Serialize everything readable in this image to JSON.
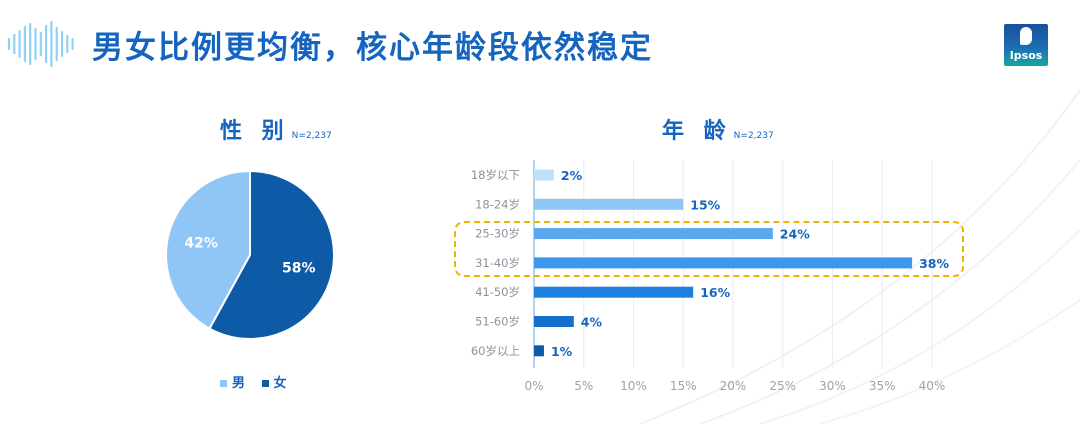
{
  "header": {
    "title": "男女比例更均衡，核心年龄段依然稳定",
    "logo_text": "Ipsos",
    "accent_color": "#1565c0"
  },
  "gender": {
    "title": "性 别",
    "n_label": "N=2,237",
    "legend": [
      {
        "label": "男",
        "color": "#90c6f5"
      },
      {
        "label": "女",
        "color": "#0d5aa7"
      }
    ]
  },
  "age": {
    "title": "年 龄",
    "n_label": "N=2,237"
  },
  "chart_data": [
    {
      "type": "pie",
      "labels": [
        "男",
        "女"
      ],
      "values": [
        42,
        58
      ],
      "value_labels": [
        "42%",
        "58%"
      ],
      "colors": [
        "#90c6f5",
        "#0d5aa7"
      ]
    },
    {
      "type": "bar",
      "orientation": "horizontal",
      "categories": [
        "18岁以下",
        "18-24岁",
        "25-30岁",
        "31-40岁",
        "41-50岁",
        "51-60岁",
        "60岁以上"
      ],
      "values": [
        2,
        15,
        24,
        38,
        16,
        4,
        1
      ],
      "value_labels": [
        "2%",
        "15%",
        "24%",
        "38%",
        "16%",
        "4%",
        "1%"
      ],
      "colors": [
        "#bfe0fb",
        "#90c6f5",
        "#5aa9ef",
        "#3d97ec",
        "#1e7fdc",
        "#1470cc",
        "#0d5aa7"
      ],
      "xlim": [
        0,
        40
      ],
      "xticks": [
        "0%",
        "5%",
        "10%",
        "15%",
        "20%",
        "25%",
        "30%",
        "35%",
        "40%"
      ],
      "grid": true,
      "highlighted_categories": [
        "25-30岁",
        "31-40岁"
      ],
      "highlight_color": "#f0b400"
    }
  ]
}
